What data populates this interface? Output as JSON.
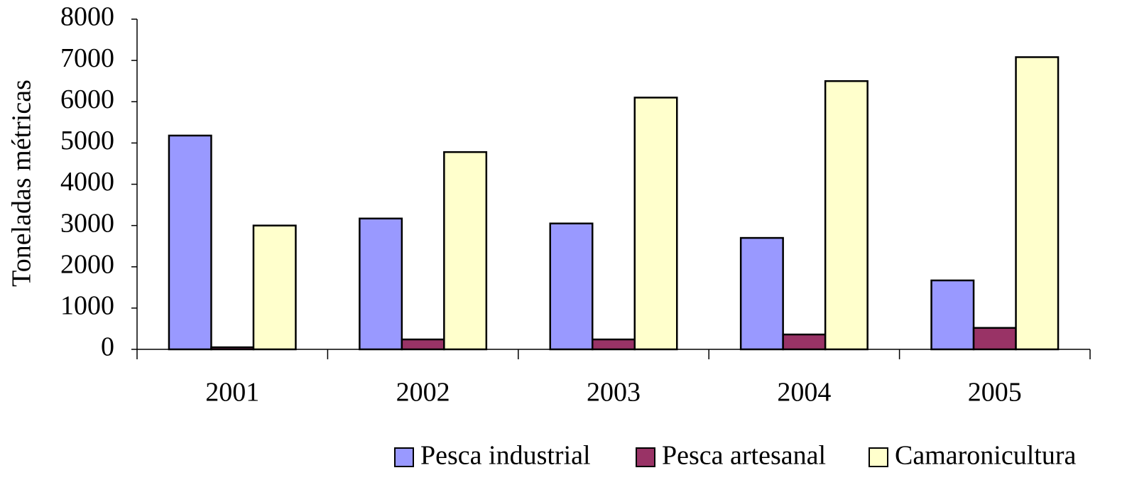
{
  "chart_data": {
    "type": "bar",
    "y_label": "Toneladas métricas",
    "categories": [
      "2001",
      "2002",
      "2003",
      "2004",
      "2005"
    ],
    "series": [
      {
        "name": "Pesca industrial",
        "color": "#9999ff",
        "values": [
          5180,
          3170,
          3050,
          2700,
          1670
        ]
      },
      {
        "name": "Pesca artesanal",
        "color": "#993366",
        "values": [
          50,
          240,
          240,
          360,
          520
        ]
      },
      {
        "name": "Camaronicultura",
        "color": "#ffffcc",
        "values": [
          3000,
          4780,
          6100,
          6500,
          7080
        ]
      }
    ],
    "ylim": [
      0,
      8000
    ],
    "yticks": [
      0,
      1000,
      2000,
      3000,
      4000,
      5000,
      6000,
      7000,
      8000
    ],
    "grid": false,
    "legend": "bottom"
  }
}
